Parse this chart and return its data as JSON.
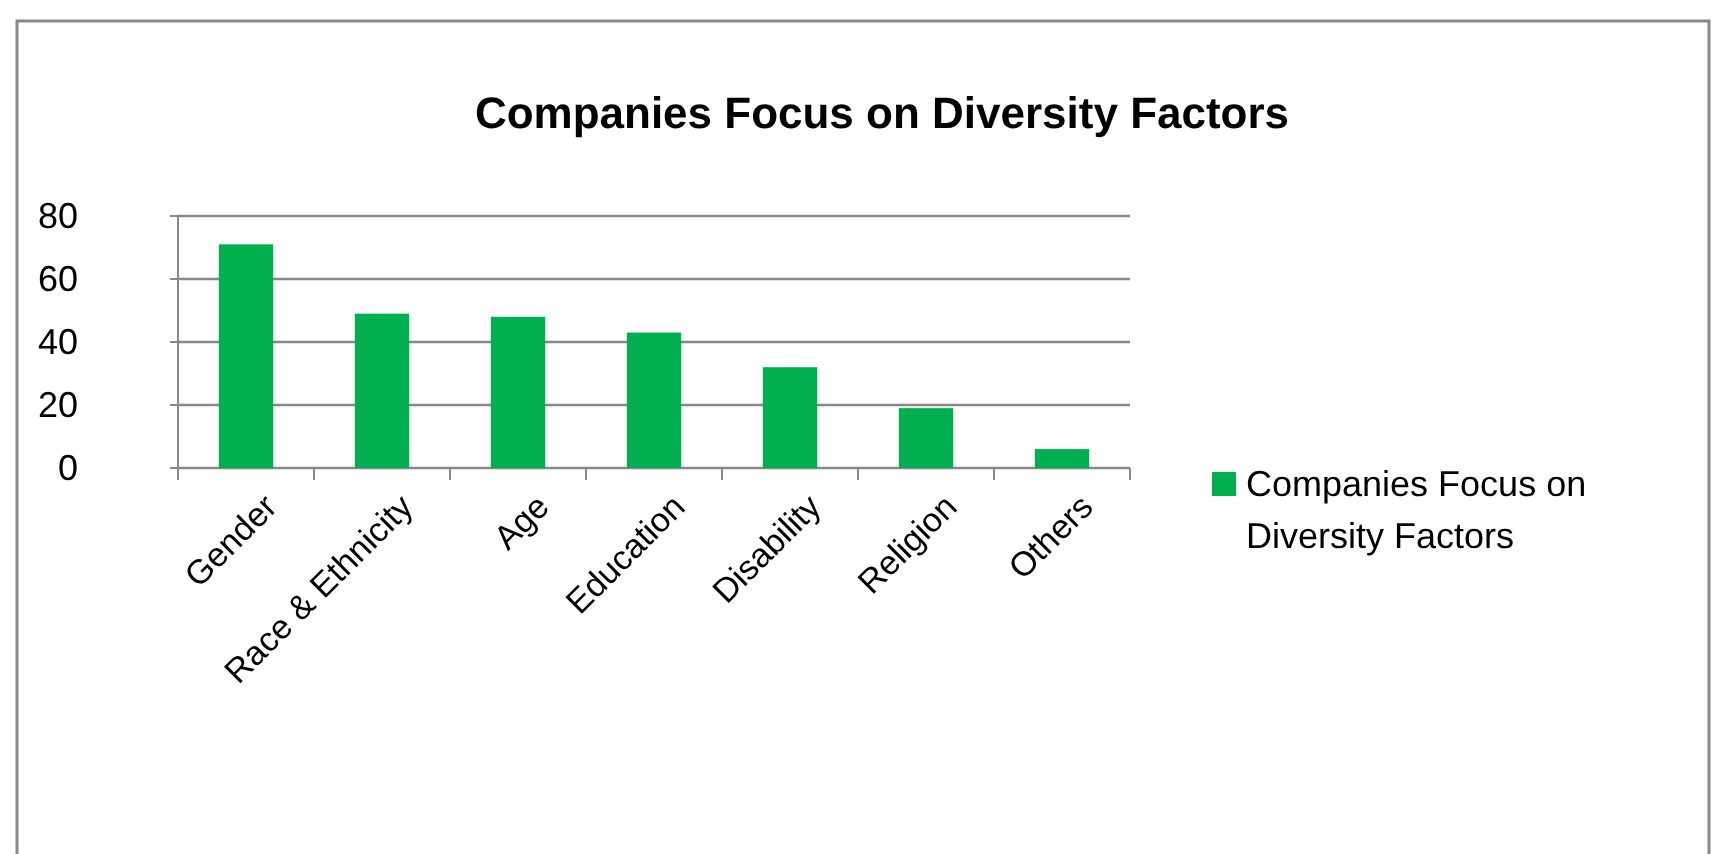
{
  "chart_data": {
    "type": "bar",
    "title": "Companies Focus on Diversity Factors",
    "categories": [
      "Gender",
      "Race & Ethnicity",
      "Age",
      "Education",
      "Disability",
      "Religion",
      "Others"
    ],
    "series": [
      {
        "name": "Companies Focus on Diversity Factors",
        "color": "#00b050",
        "values": [
          71,
          49,
          48,
          43,
          32,
          19,
          6
        ]
      }
    ],
    "ylim": [
      0,
      80
    ],
    "yticks": [
      0,
      20,
      40,
      60,
      80
    ],
    "grid": "y",
    "legend": "right"
  }
}
